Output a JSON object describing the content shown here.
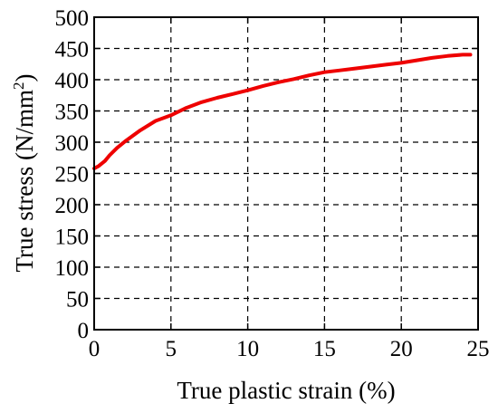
{
  "chart_data": {
    "type": "line",
    "xlabel": "True plastic strain (%)",
    "ylabel_main": "True stress (N/mm",
    "ylabel_sup": "2",
    "ylabel_end": ")",
    "xlim": [
      0,
      25
    ],
    "ylim": [
      0,
      500
    ],
    "x_ticks": [
      "0",
      "5",
      "10",
      "15",
      "20",
      "25"
    ],
    "y_ticks": [
      "0",
      "50",
      "100",
      "150",
      "200",
      "250",
      "300",
      "350",
      "400",
      "450",
      "500"
    ],
    "grid": true,
    "series": [
      {
        "color": "#ee0000",
        "x": [
          0,
          0.3,
          0.7,
          1.0,
          1.5,
          2.0,
          3.0,
          4.0,
          5.0,
          6.0,
          7.0,
          8.0,
          9.0,
          10.0,
          11.0,
          12.0,
          13.0,
          14.0,
          15.0,
          16.0,
          17.0,
          18.0,
          19.0,
          20.0,
          21.0,
          22.0,
          23.0,
          24.0,
          24.5
        ],
        "y": [
          258,
          262,
          270,
          279,
          291,
          301,
          319,
          334,
          343,
          355,
          364,
          371,
          377,
          383,
          390,
          396,
          401,
          407,
          412,
          415,
          418,
          421,
          424,
          427,
          431,
          435,
          438,
          440,
          440
        ]
      }
    ]
  }
}
